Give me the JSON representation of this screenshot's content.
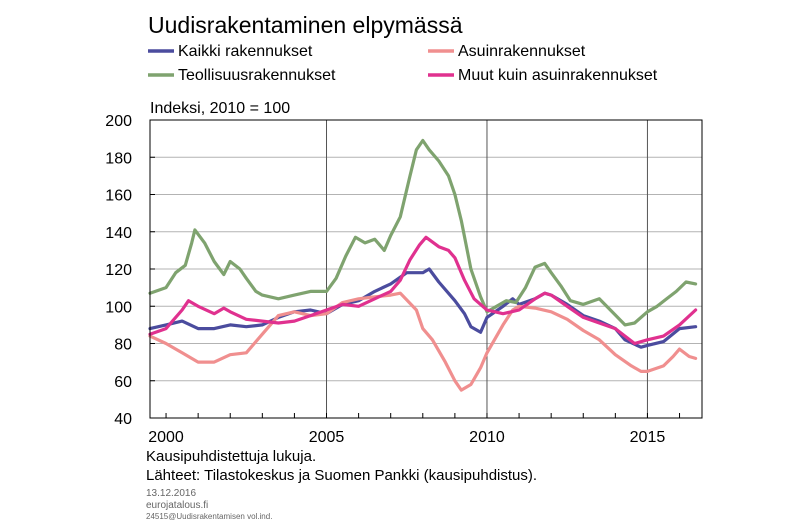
{
  "chart_data": {
    "type": "line",
    "title": "Uudisrakentaminen elpymässä",
    "ylabel": "Indeksi, 2010 = 100",
    "xlabel": "",
    "ylim": [
      40,
      200
    ],
    "yticks": [
      40,
      60,
      80,
      100,
      120,
      140,
      160,
      180,
      200
    ],
    "xlim": [
      1999.5,
      2016.7
    ],
    "xtick_labels": [
      {
        "x": 2000,
        "label": "2000"
      },
      {
        "x": 2005,
        "label": "2005"
      },
      {
        "x": 2010,
        "label": "2010"
      },
      {
        "x": 2015,
        "label": "2015"
      }
    ],
    "vertical_gridlines": [
      2005,
      2010,
      2015
    ],
    "grid": true,
    "legend_placement": "top, two columns",
    "series": [
      {
        "name": "Kaikki rakennukset",
        "color": "#4b4c9e",
        "points": [
          [
            1999.5,
            88
          ],
          [
            2000.0,
            90
          ],
          [
            2000.5,
            92
          ],
          [
            2001.0,
            88
          ],
          [
            2001.5,
            88
          ],
          [
            2002.0,
            90
          ],
          [
            2002.5,
            89
          ],
          [
            2003.0,
            90
          ],
          [
            2003.5,
            94
          ],
          [
            2004.0,
            97
          ],
          [
            2004.5,
            98
          ],
          [
            2005.0,
            96
          ],
          [
            2005.5,
            101
          ],
          [
            2006.0,
            103
          ],
          [
            2006.5,
            108
          ],
          [
            2007.0,
            112
          ],
          [
            2007.5,
            118
          ],
          [
            2008.0,
            118
          ],
          [
            2008.2,
            120
          ],
          [
            2008.5,
            113
          ],
          [
            2009.0,
            103
          ],
          [
            2009.3,
            96
          ],
          [
            2009.5,
            89
          ],
          [
            2009.8,
            86
          ],
          [
            2010.0,
            94
          ],
          [
            2010.5,
            100
          ],
          [
            2010.8,
            104
          ],
          [
            2011.0,
            101
          ],
          [
            2011.5,
            104
          ],
          [
            2011.8,
            107
          ],
          [
            2012.0,
            106
          ],
          [
            2012.5,
            101
          ],
          [
            2013.0,
            95
          ],
          [
            2013.5,
            92
          ],
          [
            2014.0,
            88
          ],
          [
            2014.3,
            82
          ],
          [
            2014.8,
            78
          ],
          [
            2015.0,
            79
          ],
          [
            2015.5,
            81
          ],
          [
            2016.0,
            88
          ],
          [
            2016.5,
            89
          ]
        ]
      },
      {
        "name": "Asuinrakennukset",
        "color": "#f08f8f",
        "points": [
          [
            1999.5,
            84
          ],
          [
            2000.0,
            80
          ],
          [
            2000.5,
            75
          ],
          [
            2001.0,
            70
          ],
          [
            2001.5,
            70
          ],
          [
            2002.0,
            74
          ],
          [
            2002.5,
            75
          ],
          [
            2003.0,
            85
          ],
          [
            2003.5,
            95
          ],
          [
            2004.0,
            97
          ],
          [
            2004.5,
            95
          ],
          [
            2005.0,
            96
          ],
          [
            2005.5,
            102
          ],
          [
            2006.0,
            104
          ],
          [
            2006.5,
            105
          ],
          [
            2007.0,
            106
          ],
          [
            2007.3,
            107
          ],
          [
            2007.8,
            98
          ],
          [
            2008.0,
            88
          ],
          [
            2008.3,
            82
          ],
          [
            2008.7,
            70
          ],
          [
            2009.0,
            60
          ],
          [
            2009.2,
            55
          ],
          [
            2009.5,
            58
          ],
          [
            2009.8,
            67
          ],
          [
            2010.0,
            75
          ],
          [
            2010.5,
            90
          ],
          [
            2010.8,
            98
          ],
          [
            2011.0,
            100
          ],
          [
            2011.5,
            99
          ],
          [
            2012.0,
            97
          ],
          [
            2012.5,
            93
          ],
          [
            2013.0,
            87
          ],
          [
            2013.5,
            82
          ],
          [
            2014.0,
            74
          ],
          [
            2014.5,
            68
          ],
          [
            2014.8,
            65
          ],
          [
            2015.0,
            65
          ],
          [
            2015.5,
            68
          ],
          [
            2015.8,
            73
          ],
          [
            2016.0,
            77
          ],
          [
            2016.3,
            73
          ],
          [
            2016.5,
            72
          ]
        ]
      },
      {
        "name": "Teollisuusrakennukset",
        "color": "#7fa36f",
        "points": [
          [
            1999.5,
            107
          ],
          [
            2000.0,
            110
          ],
          [
            2000.3,
            118
          ],
          [
            2000.6,
            122
          ],
          [
            2000.8,
            134
          ],
          [
            2000.9,
            141
          ],
          [
            2001.2,
            134
          ],
          [
            2001.5,
            124
          ],
          [
            2001.8,
            117
          ],
          [
            2002.0,
            124
          ],
          [
            2002.3,
            120
          ],
          [
            2002.5,
            115
          ],
          [
            2002.8,
            108
          ],
          [
            2003.0,
            106
          ],
          [
            2003.5,
            104
          ],
          [
            2004.0,
            106
          ],
          [
            2004.5,
            108
          ],
          [
            2005.0,
            108
          ],
          [
            2005.3,
            115
          ],
          [
            2005.6,
            127
          ],
          [
            2005.9,
            137
          ],
          [
            2006.2,
            134
          ],
          [
            2006.5,
            136
          ],
          [
            2006.8,
            130
          ],
          [
            2007.0,
            138
          ],
          [
            2007.3,
            148
          ],
          [
            2007.6,
            170
          ],
          [
            2007.8,
            184
          ],
          [
            2008.0,
            189
          ],
          [
            2008.2,
            184
          ],
          [
            2008.5,
            178
          ],
          [
            2008.8,
            170
          ],
          [
            2009.0,
            160
          ],
          [
            2009.2,
            146
          ],
          [
            2009.5,
            120
          ],
          [
            2009.8,
            105
          ],
          [
            2010.0,
            97
          ],
          [
            2010.3,
            100
          ],
          [
            2010.6,
            103
          ],
          [
            2010.9,
            102
          ],
          [
            2011.2,
            110
          ],
          [
            2011.5,
            121
          ],
          [
            2011.8,
            123
          ],
          [
            2012.0,
            118
          ],
          [
            2012.3,
            111
          ],
          [
            2012.6,
            103
          ],
          [
            2013.0,
            101
          ],
          [
            2013.5,
            104
          ],
          [
            2013.9,
            97
          ],
          [
            2014.3,
            90
          ],
          [
            2014.6,
            91
          ],
          [
            2015.0,
            97
          ],
          [
            2015.3,
            100
          ],
          [
            2015.6,
            104
          ],
          [
            2015.9,
            108
          ],
          [
            2016.2,
            113
          ],
          [
            2016.5,
            112
          ]
        ]
      },
      {
        "name": "Muut kuin asuinrakennukset",
        "color": "#e0318f",
        "points": [
          [
            1999.5,
            85
          ],
          [
            2000.0,
            88
          ],
          [
            2000.5,
            98
          ],
          [
            2000.7,
            103
          ],
          [
            2001.0,
            100
          ],
          [
            2001.5,
            96
          ],
          [
            2001.8,
            99
          ],
          [
            2002.0,
            97
          ],
          [
            2002.5,
            93
          ],
          [
            2003.0,
            92
          ],
          [
            2003.5,
            91
          ],
          [
            2004.0,
            92
          ],
          [
            2004.5,
            95
          ],
          [
            2005.0,
            98
          ],
          [
            2005.5,
            101
          ],
          [
            2006.0,
            100
          ],
          [
            2006.5,
            104
          ],
          [
            2007.0,
            108
          ],
          [
            2007.3,
            114
          ],
          [
            2007.6,
            125
          ],
          [
            2007.9,
            133
          ],
          [
            2008.1,
            137
          ],
          [
            2008.5,
            132
          ],
          [
            2008.8,
            130
          ],
          [
            2009.0,
            126
          ],
          [
            2009.3,
            114
          ],
          [
            2009.6,
            104
          ],
          [
            2010.0,
            98
          ],
          [
            2010.5,
            96
          ],
          [
            2011.0,
            98
          ],
          [
            2011.5,
            104
          ],
          [
            2011.8,
            107
          ],
          [
            2012.0,
            106
          ],
          [
            2012.5,
            100
          ],
          [
            2013.0,
            94
          ],
          [
            2013.5,
            91
          ],
          [
            2014.0,
            88
          ],
          [
            2014.3,
            84
          ],
          [
            2014.6,
            80
          ],
          [
            2015.0,
            82
          ],
          [
            2015.5,
            84
          ],
          [
            2016.0,
            90
          ],
          [
            2016.5,
            98
          ]
        ]
      }
    ]
  },
  "footer": {
    "note1": "Kausipuhdistettuja lukuja.",
    "note2": "Lähteet: Tilastokeskus  ja Suomen Pankki (kausipuhdistus).",
    "date": "13.12.2016",
    "site": "eurojatalous.fi",
    "code": "24515@Uudisrakentamisen vol.ind."
  }
}
